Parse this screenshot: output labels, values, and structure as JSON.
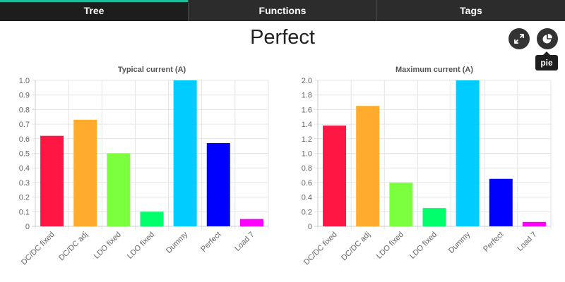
{
  "tabs": [
    {
      "label": "Tree",
      "active": true
    },
    {
      "label": "Functions",
      "active": false
    },
    {
      "label": "Tags",
      "active": false
    }
  ],
  "page": {
    "title": "Perfect"
  },
  "buttons": {
    "expand_icon": "expand-icon",
    "pie_icon": "pie-chart-icon",
    "tooltip": "pie"
  },
  "colors": {
    "accent": "#1abc9c",
    "tabbar": "#2c2c2c"
  },
  "chart_data": [
    {
      "type": "bar",
      "title": "Typical current (A)",
      "xlabel": "",
      "ylabel": "",
      "categories": [
        "DC/DC fixed",
        "DC/DC adj",
        "LDO fixed",
        "LDO fixed",
        "Dummy",
        "Perfect",
        "Load 7"
      ],
      "values": [
        0.62,
        0.73,
        0.5,
        0.1,
        1.0,
        0.57,
        0.05
      ],
      "colors": [
        "#ff1744",
        "#ffab2e",
        "#7cff3f",
        "#00ff6a",
        "#00ccff",
        "#0000ff",
        "#ff00ff"
      ],
      "ylim": [
        0,
        1.0
      ],
      "yticks": [
        "0",
        "0.1",
        "0.2",
        "0.3",
        "0.4",
        "0.5",
        "0.6",
        "0.7",
        "0.8",
        "0.9",
        "1.0"
      ],
      "grid": true
    },
    {
      "type": "bar",
      "title": "Maximum current (A)",
      "xlabel": "",
      "ylabel": "",
      "categories": [
        "DC/DC fixed",
        "DC/DC adj",
        "LDO fixed",
        "LDO fixed",
        "Dummy",
        "Perfect",
        "Load 7"
      ],
      "values": [
        1.38,
        1.65,
        0.6,
        0.25,
        2.0,
        0.65,
        0.06
      ],
      "colors": [
        "#ff1744",
        "#ffab2e",
        "#7cff3f",
        "#00ff6a",
        "#00ccff",
        "#0000ff",
        "#ff00ff"
      ],
      "ylim": [
        0,
        2.0
      ],
      "yticks": [
        "0",
        "0.2",
        "0.4",
        "0.6",
        "0.8",
        "1.0",
        "1.2",
        "1.4",
        "1.6",
        "1.8",
        "2.0"
      ],
      "grid": true
    }
  ]
}
